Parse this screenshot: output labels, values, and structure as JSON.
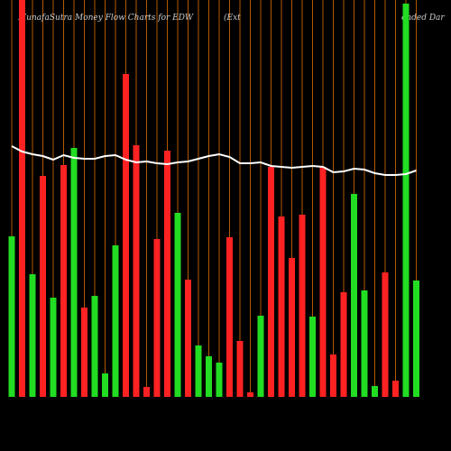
{
  "chart_data": {
    "type": "bar",
    "title_parts": [
      "MunafaSutra  Money Flow  Charts for EDW",
      "(Ext",
      "ended Dar"
    ],
    "categories": [
      null,
      null,
      null,
      null,
      null,
      null,
      null,
      null,
      null,
      null,
      null,
      null,
      null,
      null,
      null,
      null,
      null,
      null,
      null,
      null,
      null,
      null,
      null,
      null,
      null,
      null,
      null,
      null,
      null,
      null,
      null,
      null,
      null,
      null,
      null,
      null,
      null,
      null,
      null,
      null
    ],
    "values": [
      178,
      440,
      136,
      245,
      110,
      257,
      276,
      99,
      112,
      26,
      168,
      358,
      279,
      11,
      175,
      273,
      204,
      130,
      57,
      45,
      38,
      177,
      62,
      5,
      90,
      255,
      200,
      154,
      202,
      89,
      255,
      47,
      116,
      225,
      118,
      12,
      138,
      18,
      436,
      129
    ],
    "colors": [
      "#22dd22",
      "#ff2222",
      "#22dd22",
      "#ff2222",
      "#22dd22",
      "#ff2222",
      "#22dd22",
      "#ff2222",
      "#22dd22",
      "#22dd22",
      "#22dd22",
      "#ff2222",
      "#ff2222",
      "#ff2222",
      "#ff2222",
      "#ff2222",
      "#22dd22",
      "#ff2222",
      "#22dd22",
      "#22dd22",
      "#22dd22",
      "#ff2222",
      "#ff2222",
      "#ff2222",
      "#22dd22",
      "#ff2222",
      "#ff2222",
      "#ff2222",
      "#ff2222",
      "#22dd22",
      "#ff2222",
      "#ff2222",
      "#ff2222",
      "#22dd22",
      "#22dd22",
      "#22dd22",
      "#ff2222",
      "#ff2222",
      "#22dd22",
      "#22dd22"
    ],
    "line_values": [
      278,
      272,
      269,
      267,
      263,
      268,
      265,
      264,
      264,
      267,
      268,
      263,
      260,
      261,
      259,
      258,
      260,
      261,
      264,
      267,
      269,
      266,
      259,
      259,
      260,
      256,
      255,
      254,
      255,
      256,
      255,
      249,
      250,
      253,
      252,
      248,
      246,
      246,
      247,
      251
    ],
    "line_color": "#ffffff",
    "grid_color": "#b35900",
    "ylim": [
      0,
      440
    ]
  }
}
